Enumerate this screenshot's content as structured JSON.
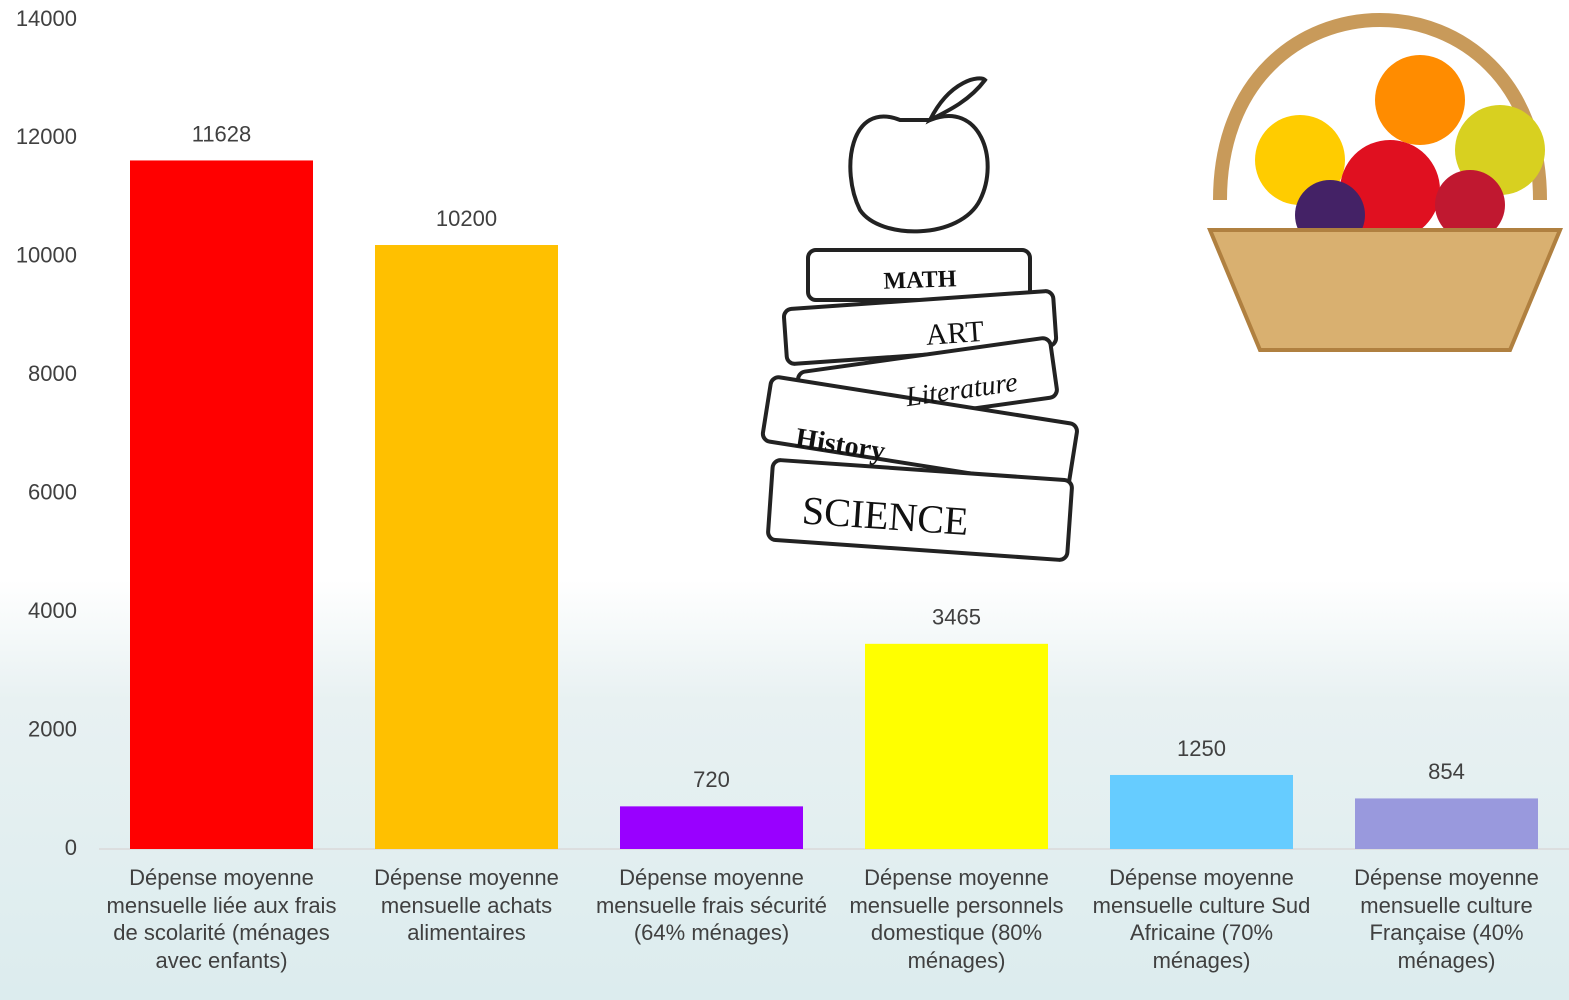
{
  "chart_data": {
    "type": "bar",
    "categories": [
      "Dépense moyenne mensuelle liée aux frais de scolarité (ménages avec enfants)",
      "Dépense moyenne mensuelle achats alimentaires",
      "Dépense moyenne mensuelle frais sécurité (64% ménages)",
      "Dépense moyenne mensuelle personnels domestique (80% ménages)",
      "Dépense moyenne mensuelle culture Sud Africaine (70% ménages)",
      "Dépense moyenne mensuelle culture Française (40% ménages)"
    ],
    "values": [
      11628,
      10200,
      720,
      3465,
      1250,
      854
    ],
    "colors": [
      "#ff0000",
      "#ffc000",
      "#9900ff",
      "#ffff00",
      "#66ccff",
      "#9999dd"
    ],
    "ylim": [
      0,
      14000
    ],
    "yticks": [
      0,
      2000,
      4000,
      6000,
      8000,
      10000,
      12000,
      14000
    ],
    "grid": false
  },
  "illustrations": {
    "books": [
      "MATH",
      "ART",
      "Literature",
      "History",
      "SCIENCE"
    ]
  }
}
